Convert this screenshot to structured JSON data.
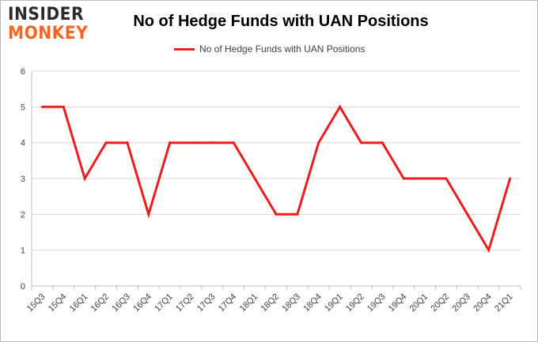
{
  "brand": {
    "logo_top": "INSIDER",
    "logo_bottom": "MONKEY"
  },
  "colors": {
    "series": "#ee1c1c",
    "grid": "#d9d9d9",
    "logo_orange": "#f26522"
  },
  "chart_data": {
    "type": "line",
    "title": "No of Hedge Funds with UAN Positions",
    "xlabel": "",
    "ylabel": "",
    "ylim": [
      0,
      6
    ],
    "yticks": [
      0,
      1,
      2,
      3,
      4,
      5,
      6
    ],
    "grid": true,
    "legend_position": "top-center",
    "categories": [
      "15Q3",
      "15Q4",
      "16Q1",
      "16Q2",
      "16Q3",
      "16Q4",
      "17Q1",
      "17Q2",
      "17Q3",
      "17Q4",
      "18Q1",
      "18Q2",
      "18Q3",
      "18Q4",
      "19Q1",
      "19Q2",
      "19Q3",
      "19Q4",
      "20Q1",
      "20Q2",
      "20Q3",
      "20Q4",
      "21Q1"
    ],
    "series": [
      {
        "name": "No of Hedge Funds with UAN Positions",
        "values": [
          5,
          5,
          3,
          4,
          4,
          2,
          4,
          4,
          4,
          4,
          3,
          2,
          2,
          4,
          5,
          4,
          4,
          3,
          3,
          3,
          2,
          1,
          3
        ]
      }
    ]
  }
}
